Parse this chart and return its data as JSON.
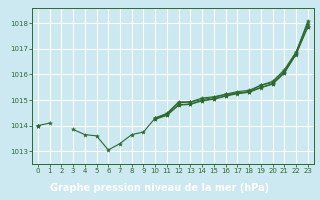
{
  "title": "Graphe pression niveau de la mer (hPa)",
  "bg_color": "#cce8f0",
  "grid_color": "#ffffff",
  "line_color": "#2d6a2d",
  "marker_color": "#2d6a2d",
  "xlim": [
    -0.5,
    23.5
  ],
  "ylim": [
    1012.5,
    1018.6
  ],
  "yticks": [
    1013,
    1014,
    1015,
    1016,
    1017,
    1018
  ],
  "xticks": [
    0,
    1,
    2,
    3,
    4,
    5,
    6,
    7,
    8,
    9,
    10,
    11,
    12,
    13,
    14,
    15,
    16,
    17,
    18,
    19,
    20,
    21,
    22,
    23
  ],
  "series": [
    [
      1014.0,
      1014.1,
      null,
      1013.85,
      1013.65,
      1013.6,
      1013.05,
      1013.3,
      1013.65,
      1013.75,
      1014.3,
      1014.45,
      1014.9,
      1014.92,
      1015.02,
      1015.1,
      1015.22,
      1015.28,
      1015.33,
      1015.58,
      1015.68,
      1016.12,
      1016.85,
      1018.08
    ],
    [
      1014.0,
      null,
      null,
      null,
      null,
      null,
      null,
      null,
      null,
      null,
      1014.27,
      1014.42,
      1014.82,
      1014.85,
      1014.98,
      1015.05,
      1015.17,
      1015.27,
      1015.32,
      1015.5,
      1015.63,
      1016.07,
      1016.8,
      1017.87
    ],
    [
      1014.0,
      null,
      null,
      null,
      null,
      null,
      null,
      null,
      null,
      null,
      1014.3,
      1014.48,
      1014.93,
      1014.93,
      1015.08,
      1015.13,
      1015.23,
      1015.33,
      1015.38,
      1015.58,
      1015.73,
      1016.18,
      1016.88,
      1017.98
    ],
    [
      1014.0,
      null,
      null,
      null,
      null,
      null,
      null,
      null,
      null,
      null,
      1014.25,
      1014.4,
      1014.8,
      1014.83,
      1014.97,
      1015.03,
      1015.15,
      1015.25,
      1015.3,
      1015.48,
      1015.62,
      1016.05,
      1016.78,
      1017.85
    ]
  ],
  "title_bg": "#336633",
  "title_color": "#ffffff",
  "title_fontsize": 7.0
}
